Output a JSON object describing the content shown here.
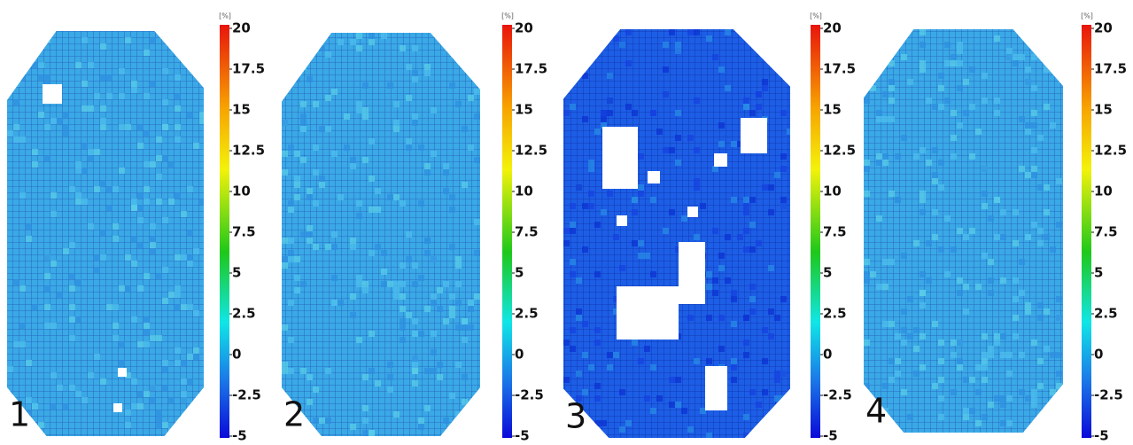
{
  "panels": [
    {
      "label": "1",
      "colorbar": {
        "unit": "[%]",
        "ticks": [
          20,
          17.5,
          15,
          12.5,
          10,
          7.5,
          5,
          2.5,
          0,
          -2.5,
          -5
        ]
      }
    },
    {
      "label": "2",
      "colorbar": {
        "unit": "[%]",
        "ticks": [
          20,
          17.5,
          15,
          12.5,
          10,
          7.5,
          5,
          2.5,
          0,
          -2.5,
          -5
        ]
      }
    },
    {
      "label": "3",
      "colorbar": {
        "unit": "[%]",
        "ticks": [
          20,
          17.5,
          15,
          12.5,
          10,
          7.5,
          5,
          2.5,
          0,
          -2.5,
          -5
        ]
      }
    },
    {
      "label": "4",
      "colorbar": {
        "unit": "[%]",
        "ticks": [
          20,
          17.5,
          15,
          12.5,
          10,
          7.5,
          5,
          2.5,
          0,
          -2.5,
          -5
        ]
      }
    }
  ]
}
